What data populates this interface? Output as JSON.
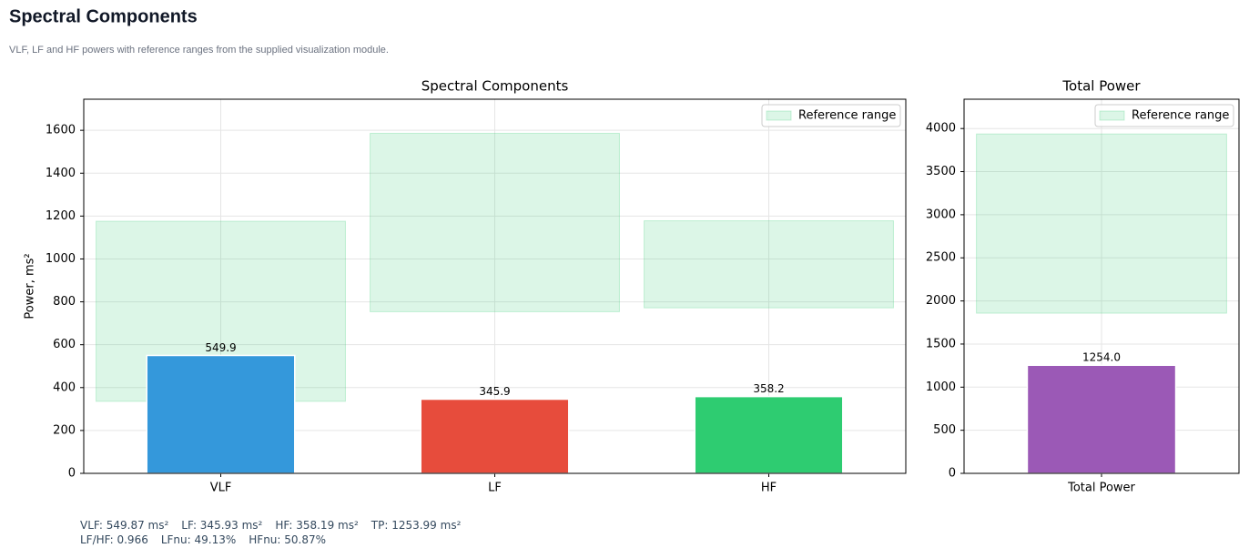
{
  "header": {
    "title": "Spectral Components",
    "subtitle": "VLF, LF and HF powers with reference ranges from the supplied visualization module."
  },
  "chart_data": [
    {
      "type": "bar",
      "title": "Spectral Components",
      "y_label": "Power, ms²",
      "categories": [
        "VLF",
        "LF",
        "HF"
      ],
      "values": [
        549.9,
        345.9,
        358.2
      ],
      "colors": [
        "#3498db",
        "#e74c3c",
        "#2ecc71"
      ],
      "reference_ranges": [
        [
          336,
          1176
        ],
        [
          754,
          1586
        ],
        [
          772,
          1178
        ]
      ],
      "reference_label": "Reference range",
      "reference_color": "#2ecc71",
      "ylim": [
        0,
        1745
      ],
      "yticks": [
        0,
        200,
        400,
        600,
        800,
        1000,
        1200,
        1400,
        1600
      ],
      "grid": true,
      "legend": "upper right"
    },
    {
      "type": "bar",
      "title": "Total Power",
      "categories": [
        "Total Power"
      ],
      "values": [
        1254.0
      ],
      "value_labels": [
        "1254.0"
      ],
      "colors": [
        "#9b59b6"
      ],
      "reference_ranges": [
        [
          1858,
          3937
        ]
      ],
      "reference_label": "Reference range",
      "reference_color": "#2ecc71",
      "ylim": [
        0,
        4340
      ],
      "yticks": [
        0,
        500,
        1000,
        1500,
        2000,
        2500,
        3000,
        3500,
        4000
      ],
      "grid": true,
      "legend": "upper right"
    }
  ],
  "footer": [
    [
      "VLF: 549.87 ms²",
      "LF: 345.93 ms²",
      "HF: 358.19 ms²",
      "TP: 1253.99 ms²"
    ],
    [
      "LF/HF: 0.966",
      "LFnu: 49.13%",
      "HFnu: 50.87%"
    ]
  ]
}
